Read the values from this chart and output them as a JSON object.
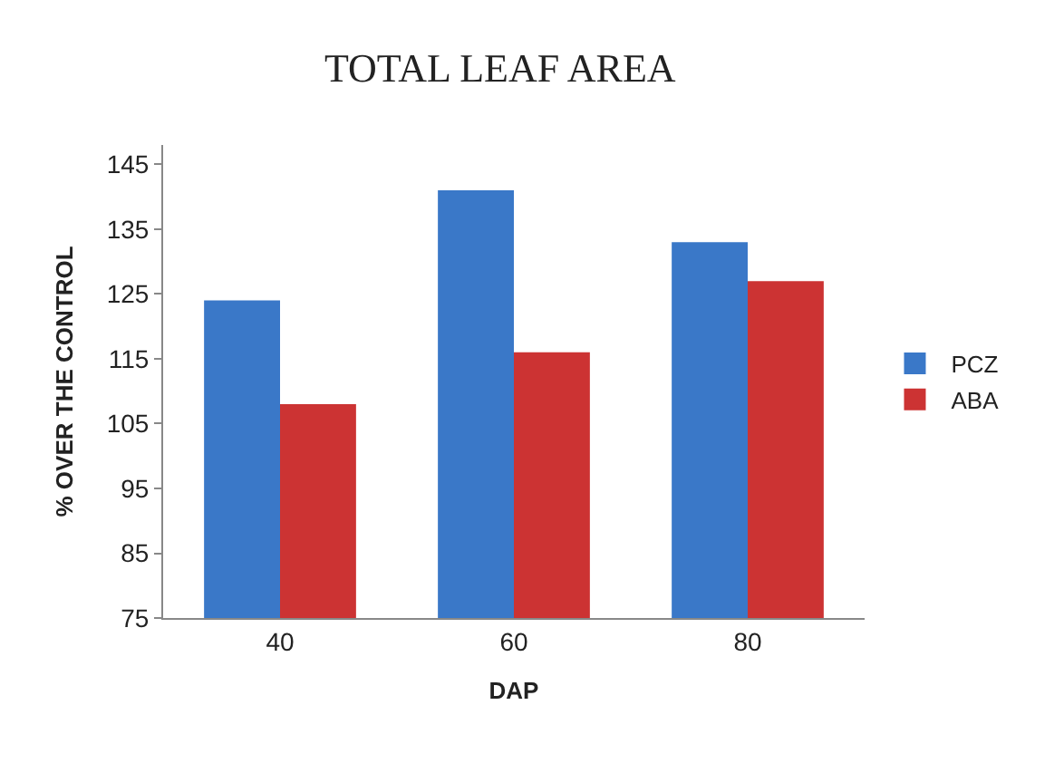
{
  "chart_data": {
    "type": "bar",
    "title": "TOTAL LEAF AREA",
    "xlabel": "DAP",
    "ylabel": "% OVER THE CONTROL",
    "categories": [
      "40",
      "60",
      "80"
    ],
    "series": [
      {
        "name": "PCZ",
        "color": "#3a78c8",
        "values": [
          124,
          141,
          133
        ]
      },
      {
        "name": "ABA",
        "color": "#cc3333",
        "values": [
          108,
          116,
          127
        ]
      }
    ],
    "ylim": [
      75,
      148
    ],
    "yticks": [
      75,
      85,
      95,
      105,
      115,
      125,
      135,
      145
    ],
    "legend": "right"
  }
}
